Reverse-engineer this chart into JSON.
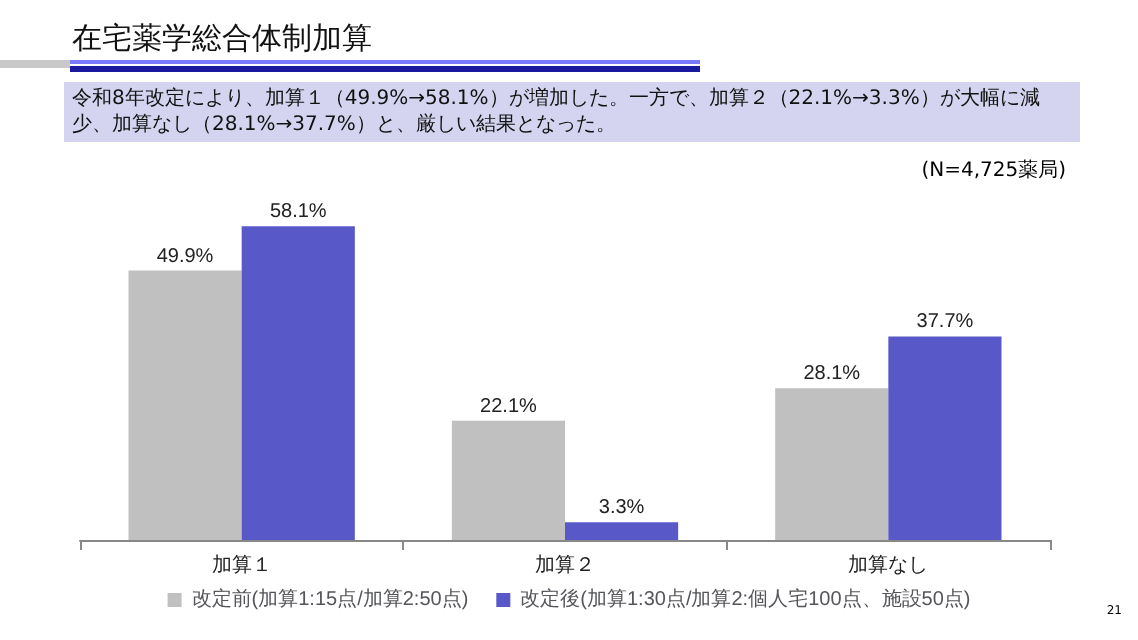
{
  "chart_data": {
    "type": "bar",
    "title": "在宅薬学総合体制加算",
    "subtitle": "令和8年改定により、加算１（49.9%→58.1%）が増加した。一方で、加算２（22.1%→3.3%）が大幅に減少、加算なし（28.1%→37.7%）と、厳しい結果となった。",
    "categories": [
      "加算１",
      "加算２",
      "加算なし"
    ],
    "series": [
      {
        "name": "改定前(加算1:15点/加算2:50点)",
        "color": "#c0c0c0",
        "values": [
          49.9,
          22.1,
          28.1
        ]
      },
      {
        "name": "改定後(加算1:30点/加算2:個人宅100点、施設50点)",
        "color": "#5858c8",
        "values": [
          58.1,
          3.3,
          37.7
        ]
      }
    ],
    "data_labels": true,
    "value_labels": [
      [
        "49.9%",
        "22.1%",
        "28.1%"
      ],
      [
        "58.1%",
        "3.3%",
        "37.7%"
      ]
    ],
    "legend": "bottom",
    "annotations": [
      "(N=4,725薬局)",
      "21"
    ]
  }
}
